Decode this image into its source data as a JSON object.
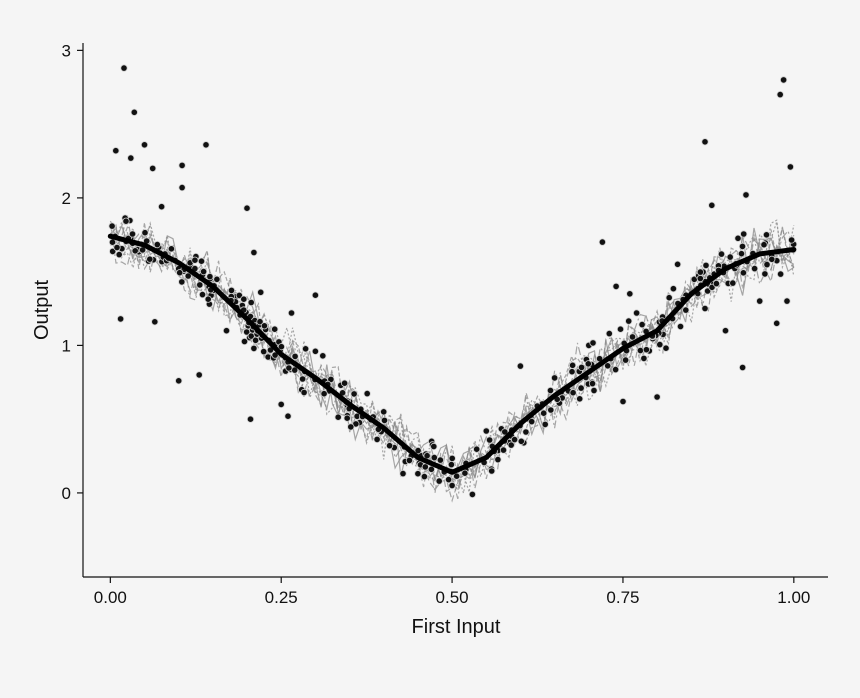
{
  "chart_data": {
    "type": "scatter",
    "title": "",
    "xlabel": "First Input",
    "ylabel": "Output",
    "xlim": [
      -0.04,
      1.05
    ],
    "ylim": [
      -0.57,
      3.05
    ],
    "x_ticks": [
      0.0,
      0.25,
      0.5,
      0.75,
      1.0
    ],
    "x_tick_labels": [
      "0.00",
      "0.25",
      "0.50",
      "0.75",
      "1.00"
    ],
    "y_ticks": [
      0,
      1,
      2,
      3
    ],
    "y_tick_labels": [
      "0",
      "1",
      "2",
      "3"
    ],
    "grid": false,
    "legend": "none",
    "colors": {
      "points": "#111111",
      "mean_line": "#000000",
      "sample_lines": "#8a8a8a",
      "background": "#f5f5f5"
    },
    "mean_curve": {
      "x": [
        0.0,
        0.05,
        0.1,
        0.15,
        0.2,
        0.25,
        0.3,
        0.35,
        0.4,
        0.45,
        0.5,
        0.55,
        0.6,
        0.65,
        0.7,
        0.75,
        0.8,
        0.85,
        0.9,
        0.95,
        1.0
      ],
      "y": [
        1.74,
        1.68,
        1.56,
        1.4,
        1.18,
        0.94,
        0.78,
        0.6,
        0.44,
        0.24,
        0.14,
        0.24,
        0.47,
        0.66,
        0.82,
        0.98,
        1.1,
        1.35,
        1.52,
        1.62,
        1.65
      ]
    },
    "sample_curve_count": 10,
    "points": {
      "x": [
        0.008,
        0.02,
        0.03,
        0.035,
        0.05,
        0.062,
        0.065,
        0.075,
        0.1,
        0.105,
        0.14,
        0.105,
        0.13,
        0.015,
        0.03,
        0.063,
        0.08,
        0.1,
        0.135,
        0.145,
        0.17,
        0.205,
        0.21,
        0.25,
        0.28,
        0.21,
        0.22,
        0.265,
        0.26,
        0.3,
        0.35,
        0.4,
        0.45,
        0.47,
        0.5,
        0.55,
        0.6,
        0.65,
        0.7,
        0.73,
        0.75,
        0.77,
        0.72,
        0.8,
        0.83,
        0.87,
        0.9,
        0.93,
        0.95,
        0.98,
        0.985,
        0.995,
        0.88,
        0.96,
        0.975,
        0.87,
        0.925,
        0.99,
        0.74,
        0.76,
        0.3,
        0.2
      ],
      "y": [
        2.32,
        2.88,
        2.27,
        2.58,
        2.36,
        2.2,
        1.16,
        1.94,
        0.76,
        2.07,
        2.36,
        2.22,
        0.8,
        1.18,
        1.73,
        1.58,
        1.62,
        1.52,
        1.48,
        1.28,
        1.1,
        0.5,
        0.98,
        0.6,
        0.7,
        1.63,
        1.36,
        1.22,
        0.52,
        0.96,
        0.62,
        0.55,
        0.13,
        0.35,
        0.05,
        0.42,
        0.86,
        0.78,
        1.0,
        1.08,
        0.62,
        1.22,
        1.7,
        0.65,
        1.55,
        2.38,
        1.1,
        2.02,
        1.3,
        2.7,
        2.8,
        2.21,
        1.95,
        1.75,
        1.15,
        1.25,
        0.85,
        1.3,
        1.4,
        1.35,
        1.34,
        1.93
      ]
    }
  }
}
